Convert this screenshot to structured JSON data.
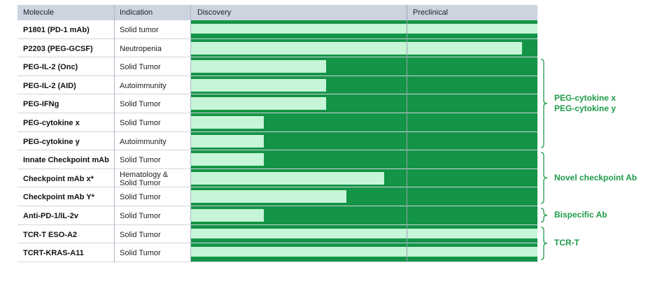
{
  "header": {
    "molecule": "Molecule",
    "indication": "Indication",
    "discovery": "Discovery",
    "preclinical": "Preclinical"
  },
  "colors": {
    "track": "#149447",
    "bar": "#c6f5d7",
    "header_bg": "#cdd4e0",
    "group_label": "#1f9a4a"
  },
  "rows": [
    {
      "molecule": "P1801 (PD-1 mAb)",
      "indication": "Solid tumor",
      "progress": 1.0
    },
    {
      "molecule": "P2203 (PEG-GCSF)",
      "indication": "Neutropenia",
      "progress": 0.955
    },
    {
      "molecule": "PEG-IL-2 (Onc)",
      "indication": "Solid Tumor",
      "progress": 0.39
    },
    {
      "molecule": "PEG-IL-2 (AID)",
      "indication": "Autoimmunity",
      "progress": 0.39
    },
    {
      "molecule": "PEG-IFNg",
      "indication": "Solid Tumor",
      "progress": 0.39
    },
    {
      "molecule": "PEG-cytokine x",
      "indication": "Solid Tumor",
      "progress": 0.21
    },
    {
      "molecule": "PEG-cytokine y",
      "indication": "Autoimmunity",
      "progress": 0.21
    },
    {
      "molecule": "Innate Checkpoint mAb",
      "indication": "Solid Tumor",
      "progress": 0.21
    },
    {
      "molecule": "Checkpoint mAb x*",
      "indication": "Hematology & Solid Tumor",
      "progress": 0.557
    },
    {
      "molecule": "Checkpoint mAb Y*",
      "indication": "Solid Tumor",
      "progress": 0.449
    },
    {
      "molecule": "Anti-PD-1/IL-2v",
      "indication": "Solid Tumor",
      "progress": 0.21
    },
    {
      "molecule": "TCR-T ESO-A2",
      "indication": "Solid Tumor",
      "progress": 1.0
    },
    {
      "molecule": "TCRT-KRAS-A11",
      "indication": "Solid Tumor",
      "progress": 1.0
    }
  ],
  "groups": [
    {
      "label_line1": "PEG-cytokine x",
      "label_line2": "PEG-cytokine y",
      "start": 2,
      "end": 6
    },
    {
      "label_line1": "Novel checkpoint Ab",
      "label_line2": "",
      "start": 7,
      "end": 9
    },
    {
      "label_line1": "Bispecific Ab",
      "label_line2": "",
      "start": 10,
      "end": 10
    },
    {
      "label_line1": "TCR-T",
      "label_line2": "",
      "start": 11,
      "end": 12
    }
  ]
}
